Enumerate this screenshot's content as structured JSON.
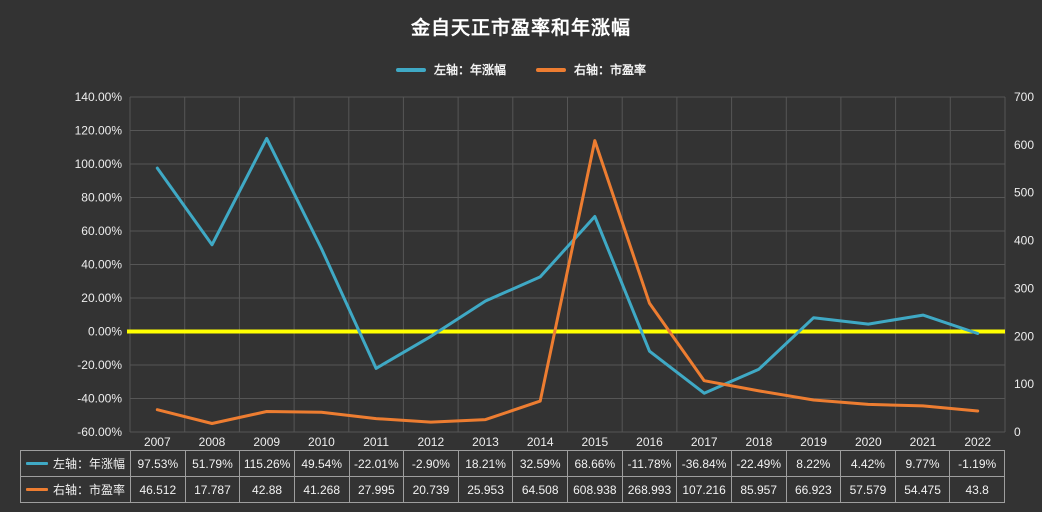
{
  "chart": {
    "title": "金自天正市盈率和年涨幅",
    "background": "#333333",
    "colors": {
      "annual": "#3FA9C5",
      "pe": "#ED7D31",
      "zero_line": "#FFFF00",
      "grid": "#565656",
      "text": "#ededed",
      "table_border": "#9e9e9e"
    }
  },
  "chart_data": {
    "type": "line",
    "title": "金自天正市盈率和年涨幅",
    "legend_position": "top",
    "grid": true,
    "categories": [
      "2007",
      "2008",
      "2009",
      "2010",
      "2011",
      "2012",
      "2013",
      "2014",
      "2015",
      "2016",
      "2017",
      "2018",
      "2019",
      "2020",
      "2021",
      "2022"
    ],
    "series": [
      {
        "name": "左轴：年涨幅",
        "axis": "left",
        "color": "#3FA9C5",
        "values": [
          97.53,
          51.79,
          115.26,
          49.54,
          -22.01,
          -2.9,
          18.21,
          32.59,
          68.66,
          -11.78,
          -36.84,
          -22.49,
          8.22,
          4.42,
          9.77,
          -1.19
        ],
        "labels": [
          "97.53%",
          "51.79%",
          "115.26%",
          "49.54%",
          "-22.01%",
          "-2.90%",
          "18.21%",
          "32.59%",
          "68.66%",
          "-11.78%",
          "-36.84%",
          "-22.49%",
          "8.22%",
          "4.42%",
          "9.77%",
          "-1.19%"
        ]
      },
      {
        "name": "右轴：市盈率",
        "axis": "right",
        "color": "#ED7D31",
        "values": [
          46.512,
          17.787,
          42.88,
          41.268,
          27.995,
          20.739,
          25.953,
          64.508,
          608.938,
          268.993,
          107.216,
          85.957,
          66.923,
          57.579,
          54.475,
          43.8
        ],
        "labels": [
          "46.512",
          "17.787",
          "42.88",
          "41.268",
          "27.995",
          "20.739",
          "25.953",
          "64.508",
          "608.938",
          "268.993",
          "107.216",
          "85.957",
          "66.923",
          "57.579",
          "54.475",
          "43.8"
        ]
      }
    ],
    "left_axis": {
      "min": -60,
      "max": 140,
      "step": 20,
      "tick_labels": [
        "140.00%",
        "120.00%",
        "100.00%",
        "80.00%",
        "60.00%",
        "40.00%",
        "20.00%",
        "0.00%",
        "-20.00%",
        "-40.00%",
        "-60.00%"
      ]
    },
    "right_axis": {
      "min": 0,
      "max": 700,
      "step": 100,
      "tick_labels": [
        "700",
        "600",
        "500",
        "400",
        "300",
        "200",
        "100",
        "0"
      ]
    },
    "zero_line_value": 0
  }
}
